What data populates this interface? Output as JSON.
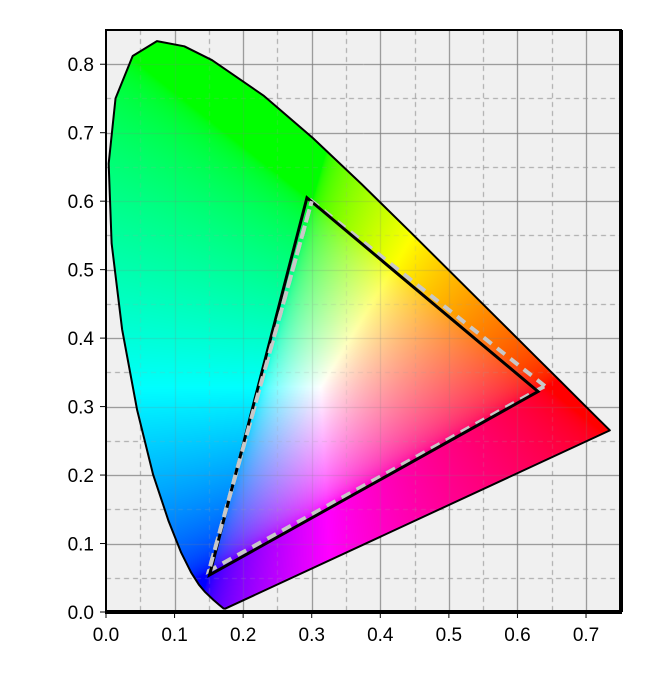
{
  "chart_data": {
    "type": "line",
    "title": "",
    "xlabel": "",
    "ylabel": "",
    "xlim": [
      0,
      0.751
    ],
    "ylim": [
      0,
      0.85
    ],
    "grid": {
      "major": 0.1,
      "minor_dashed": 0.05,
      "on": true
    },
    "background": "#f0f0f0",
    "x_ticks": [
      "0.0",
      "0.1",
      "0.2",
      "0.3",
      "0.4",
      "0.5",
      "0.6",
      "0.7"
    ],
    "y_ticks": [
      "0.0",
      "0.1",
      "0.2",
      "0.3",
      "0.4",
      "0.5",
      "0.6",
      "0.7",
      "0.8"
    ],
    "spectral_locus": [
      [
        0.1741,
        0.005
      ],
      [
        0.1714,
        0.0051
      ],
      [
        0.1644,
        0.0109
      ],
      [
        0.1566,
        0.0177
      ],
      [
        0.144,
        0.0297
      ],
      [
        0.1355,
        0.0399
      ],
      [
        0.1241,
        0.0578
      ],
      [
        0.1096,
        0.0868
      ],
      [
        0.0913,
        0.1327
      ],
      [
        0.0687,
        0.2007
      ],
      [
        0.0454,
        0.295
      ],
      [
        0.0235,
        0.4127
      ],
      [
        0.0082,
        0.5384
      ],
      [
        0.0039,
        0.6548
      ],
      [
        0.0139,
        0.7502
      ],
      [
        0.0389,
        0.812
      ],
      [
        0.0743,
        0.8338
      ],
      [
        0.1142,
        0.8262
      ],
      [
        0.1547,
        0.8059
      ],
      [
        0.2296,
        0.7543
      ],
      [
        0.3016,
        0.6923
      ],
      [
        0.3731,
        0.6245
      ],
      [
        0.4441,
        0.5547
      ],
      [
        0.5125,
        0.4866
      ],
      [
        0.5752,
        0.4242
      ],
      [
        0.627,
        0.3725
      ],
      [
        0.6658,
        0.334
      ],
      [
        0.6915,
        0.3083
      ],
      [
        0.719,
        0.2809
      ],
      [
        0.7347,
        0.2653
      ]
    ],
    "series": [
      {
        "style": "solid",
        "color": "#000000",
        "points": [
          [
            0.63,
            0.322
          ],
          [
            0.293,
            0.605
          ],
          [
            0.151,
            0.054
          ]
        ]
      },
      {
        "style": "dashed",
        "color": "#c8c8c8",
        "points": [
          [
            0.64,
            0.33
          ],
          [
            0.3,
            0.6
          ],
          [
            0.15,
            0.06
          ]
        ]
      }
    ]
  }
}
